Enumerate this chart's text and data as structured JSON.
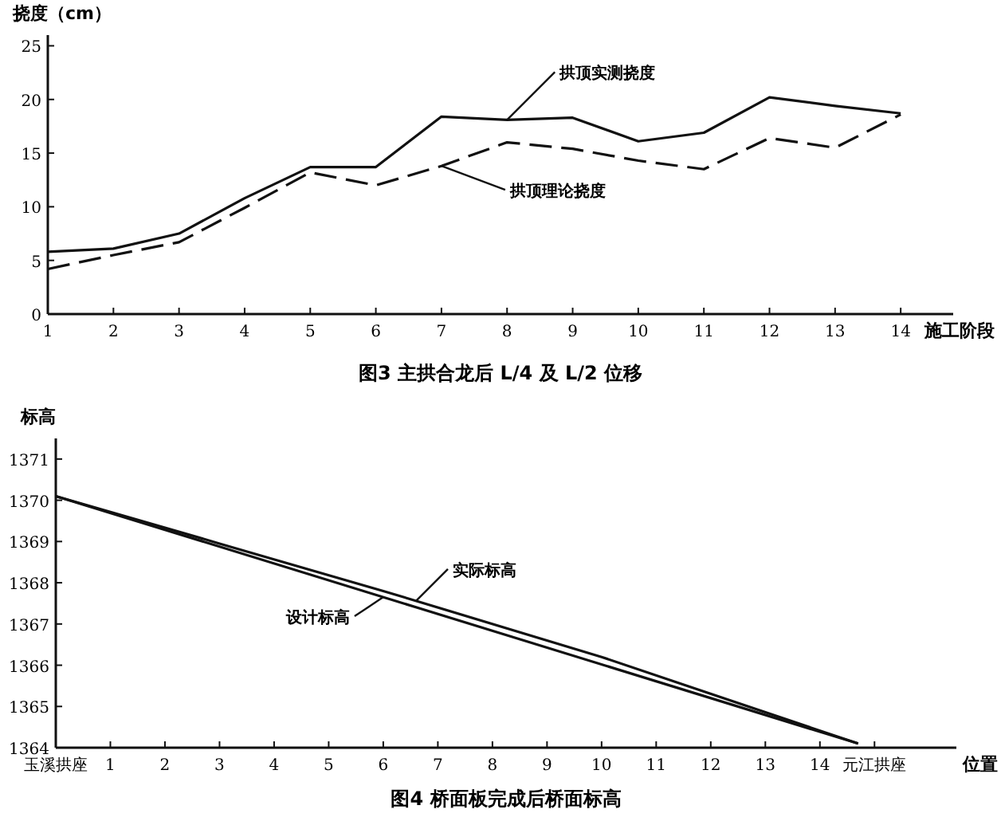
{
  "chart_data": [
    {
      "type": "line",
      "title": "图3  主拱合龙后 L/4 及 L/2 位移",
      "xlabel": "施工阶段",
      "ylabel": "挠度（cm）",
      "x": [
        1,
        2,
        3,
        4,
        5,
        6,
        7,
        8,
        9,
        10,
        11,
        12,
        13,
        14
      ],
      "xlim": [
        1,
        14.8
      ],
      "xticks": [
        1,
        2,
        3,
        4,
        5,
        6,
        7,
        8,
        9,
        10,
        11,
        12,
        13,
        14
      ],
      "ylim": [
        0,
        26
      ],
      "yticks": [
        0,
        5,
        10,
        15,
        20,
        25
      ],
      "grid": false,
      "marker": "none",
      "series": [
        {
          "name": "拱顶实测挠度",
          "color": "#111111",
          "line_style": "solid",
          "values": [
            5.8,
            6.1,
            7.5,
            10.8,
            13.7,
            13.7,
            18.4,
            18.1,
            18.3,
            16.1,
            16.9,
            20.2,
            19.4,
            18.7
          ]
        },
        {
          "name": "拱顶理论挠度",
          "color": "#111111",
          "line_style": "dashed",
          "values": [
            4.2,
            5.5,
            6.7,
            9.9,
            13.2,
            12.0,
            13.8,
            16.0,
            15.4,
            14.3,
            13.5,
            16.4,
            15.5,
            18.6
          ]
        }
      ]
    },
    {
      "type": "line",
      "title": "图4   桥面板完成后桥面标高",
      "xlabel": "位置",
      "ylabel": "标高",
      "xlim": [
        0,
        16.5
      ],
      "xticks": [
        {
          "value": 0,
          "label": "玉溪拱座"
        },
        1,
        2,
        3,
        4,
        5,
        6,
        7,
        8,
        9,
        10,
        11,
        12,
        13,
        14,
        {
          "value": 15,
          "label": "元江拱座"
        }
      ],
      "ylim": [
        1364,
        1371.5
      ],
      "yticks": [
        1364,
        1365,
        1366,
        1367,
        1368,
        1369,
        1370,
        1371
      ],
      "grid": false,
      "marker": "none",
      "series": [
        {
          "name": "实际标高",
          "color": "#111111",
          "line_style": "solid",
          "x": [
            0,
            3,
            6,
            10,
            14.7
          ],
          "values": [
            1370.1,
            1368.95,
            1367.8,
            1366.2,
            1364.1
          ]
        },
        {
          "name": "设计标高",
          "color": "#111111",
          "line_style": "solid",
          "x": [
            0,
            14.7
          ],
          "values": [
            1370.1,
            1364.1
          ]
        }
      ]
    }
  ]
}
